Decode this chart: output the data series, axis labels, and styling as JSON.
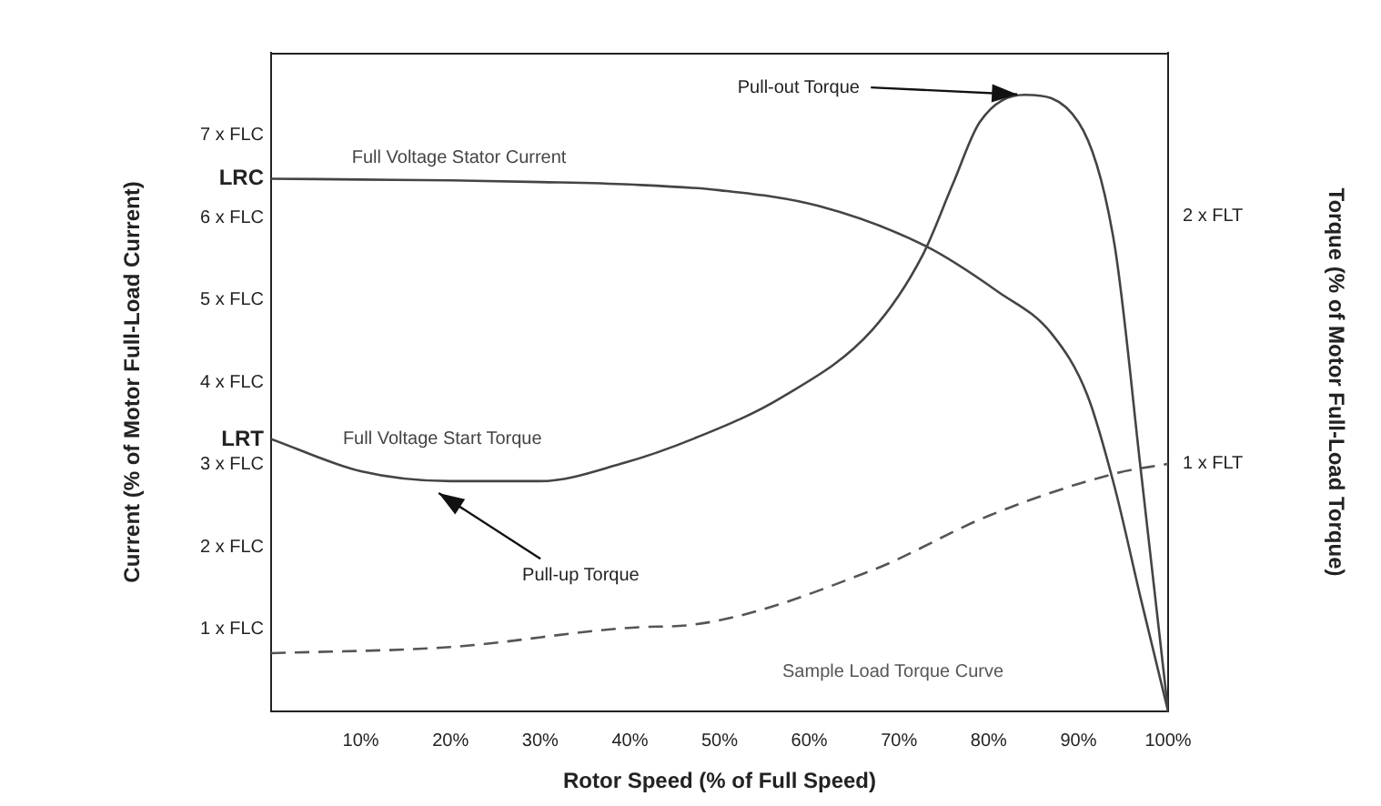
{
  "chart_data": {
    "type": "line",
    "xlabel": "Rotor Speed (% of Full Speed)",
    "ylabel": "Current (% of Motor Full-Load Current)",
    "y2label": "Torque (% of Motor Full-Load Torque)",
    "x": [
      0,
      10,
      20,
      30,
      40,
      50,
      61,
      73,
      81,
      87,
      91,
      94,
      97,
      100
    ],
    "series": [
      {
        "name": "Full Voltage Stator Current",
        "color": "#444444",
        "line_style": "solid",
        "values": [
          6.47,
          6.46,
          6.45,
          6.43,
          6.4,
          6.33,
          6.14,
          5.65,
          5.1,
          4.59,
          3.84,
          2.74,
          1.35,
          0
        ]
      },
      {
        "name": "Full Voltage Start Torque",
        "color": "#444444",
        "line_style": "solid",
        "axis": "y2",
        "x": [
          0,
          10,
          20,
          30,
          39,
          47,
          57,
          67,
          72.6,
          76,
          79,
          84,
          90,
          94,
          97,
          100
        ],
        "values": [
          1.1,
          0.97,
          0.93,
          0.93,
          1.0,
          1.1,
          1.27,
          1.54,
          1.84,
          2.13,
          2.38,
          2.49,
          2.38,
          1.89,
          0.96,
          0
        ]
      },
      {
        "name": "Sample Load Torque Curve",
        "color": "#555555",
        "line_style": "dashed",
        "axis": "y2",
        "x": [
          0,
          20,
          41,
          47,
          67,
          80,
          94,
          100
        ],
        "values": [
          0.235,
          0.26,
          0.34,
          0.35,
          0.57,
          0.79,
          0.96,
          1.0
        ]
      }
    ],
    "xlim": [
      0,
      100
    ],
    "xticks": [
      {
        "value": 10,
        "label": "10%"
      },
      {
        "value": 20,
        "label": "20%"
      },
      {
        "value": 30,
        "label": "30%"
      },
      {
        "value": 40,
        "label": "40%"
      },
      {
        "value": 50,
        "label": "50%"
      },
      {
        "value": 60,
        "label": "60%"
      },
      {
        "value": 70,
        "label": "70%"
      },
      {
        "value": 80,
        "label": "80%"
      },
      {
        "value": 90,
        "label": "90%"
      },
      {
        "value": 100,
        "label": "100%"
      }
    ],
    "ylim": [
      0,
      8
    ],
    "yticks": [
      {
        "value": 1,
        "label": "1 x FLC"
      },
      {
        "value": 2,
        "label": "2 x FLC"
      },
      {
        "value": 3,
        "label": "3 x FLC"
      },
      {
        "value": 3.3,
        "label": "LRT"
      },
      {
        "value": 4,
        "label": "4 x FLC"
      },
      {
        "value": 5,
        "label": "5 x FLC"
      },
      {
        "value": 6,
        "label": "6 x FLC"
      },
      {
        "value": 6.47,
        "label": "LRC"
      },
      {
        "value": 7,
        "label": "7 x FLC"
      }
    ],
    "y2lim": [
      0,
      2.66
    ],
    "y2ticks": [
      {
        "value": 1,
        "label": "1 x FLT"
      },
      {
        "value": 2,
        "label": "2 x FLT"
      }
    ],
    "annotations": [
      {
        "text": "Pull-up Torque",
        "x": 18,
        "y": 2.7
      },
      {
        "text": "Pull-out Torque",
        "x": 84,
        "y": 7.49
      }
    ],
    "grid": false,
    "legend": false,
    "marker": "none"
  }
}
